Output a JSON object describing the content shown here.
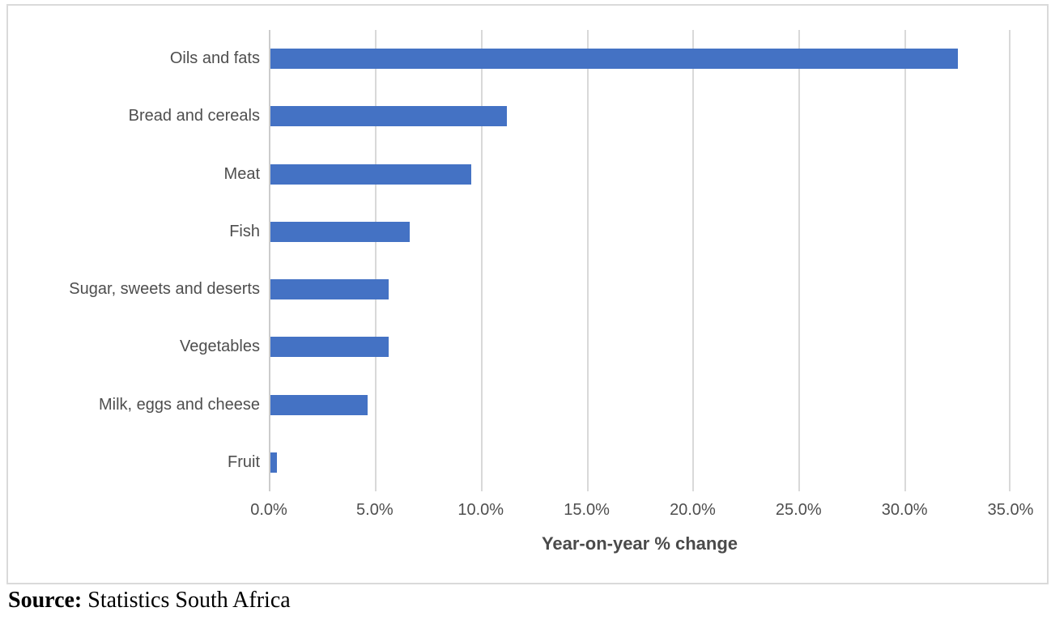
{
  "chart_data": {
    "type": "bar",
    "orientation": "horizontal",
    "categories": [
      "Oils and fats",
      "Bread and cereals",
      "Meat",
      "Fish",
      "Sugar, sweets and deserts",
      "Vegetables",
      "Milk, eggs and cheese",
      "Fruit"
    ],
    "values": [
      32.5,
      11.2,
      9.5,
      6.6,
      5.6,
      5.6,
      4.6,
      0.3
    ],
    "unit": "%",
    "xlabel": "Year-on-year % change",
    "x_ticks": [
      "0.0%",
      "5.0%",
      "10.0%",
      "15.0%",
      "20.0%",
      "25.0%",
      "30.0%",
      "35.0%"
    ],
    "xlim": [
      0,
      35
    ],
    "grid": true,
    "legend_position": "none",
    "bar_color": "#4472C4"
  },
  "colors": {
    "bar": "#4472C4",
    "gridline": "#D9D9D9",
    "axis_line": "#CCCCCC",
    "text": "#4E4E4E",
    "frame_border": "#DADADA"
  },
  "source": {
    "label": "Source:",
    "text": "Statistics South Africa"
  }
}
